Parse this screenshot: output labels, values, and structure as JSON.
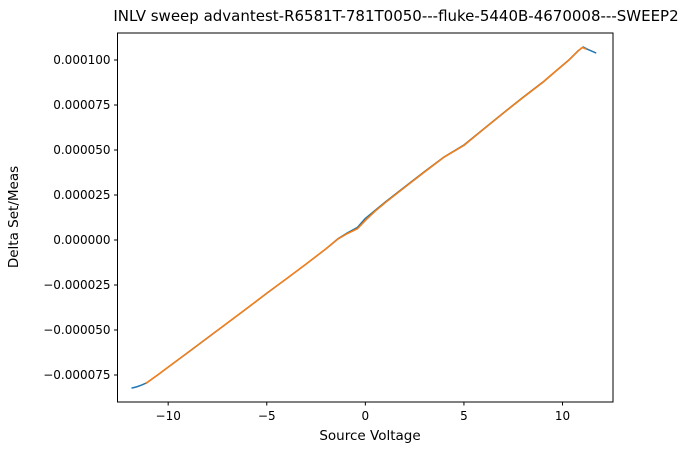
{
  "figure": {
    "background": "#ffffff",
    "text_color": "#000000",
    "spine_color": "#000000"
  },
  "chart_data": {
    "type": "line",
    "title": "INLV sweep advantest-R6581T-781T0050---fluke-5440B-4670008---SWEEP2",
    "xlabel": "Source Voltage",
    "ylabel": "Delta Set/Meas",
    "xlim": [
      -12.57,
      12.56
    ],
    "ylim": [
      -9e-05,
      0.000115
    ],
    "grid": false,
    "legend": null,
    "x_ticks": [
      {
        "value": -10,
        "label": "−10"
      },
      {
        "value": -5,
        "label": "−5"
      },
      {
        "value": 0,
        "label": "0"
      },
      {
        "value": 5,
        "label": "5"
      },
      {
        "value": 10,
        "label": "10"
      }
    ],
    "y_ticks": [
      {
        "value": 0.0001,
        "label": "0.000100"
      },
      {
        "value": 7.5e-05,
        "label": "0.000075"
      },
      {
        "value": 5e-05,
        "label": "0.000050"
      },
      {
        "value": 2.5e-05,
        "label": "0.000025"
      },
      {
        "value": 0.0,
        "label": "0.000000"
      },
      {
        "value": -2.5e-05,
        "label": "−0.000025"
      },
      {
        "value": -5e-05,
        "label": "−0.000050"
      },
      {
        "value": -7.5e-05,
        "label": "−0.000075"
      }
    ],
    "series": [
      {
        "name": "series-1-blue",
        "color": "#1f77b4",
        "points": [
          [
            -11.83,
            -8.22e-05
          ],
          [
            -11.6,
            -8.16e-05
          ],
          [
            -11.35,
            -8.06e-05
          ],
          [
            -11.1,
            -7.94e-05
          ],
          [
            -10.5,
            -7.47e-05
          ],
          [
            -10,
            -7.06e-05
          ],
          [
            -9,
            -6.25e-05
          ],
          [
            -8,
            -5.43e-05
          ],
          [
            -7,
            -4.61e-05
          ],
          [
            -6,
            -3.79e-05
          ],
          [
            -5,
            -2.96e-05
          ],
          [
            -4,
            -2.15e-05
          ],
          [
            -3,
            -1.33e-05
          ],
          [
            -2,
            -4.9e-06
          ],
          [
            -1.4,
            6e-07
          ],
          [
            -0.9,
            4e-06
          ],
          [
            -0.4,
            7e-06
          ],
          [
            0,
            1.2e-05
          ],
          [
            0.5,
            1.65e-05
          ],
          [
            1,
            2.1e-05
          ],
          [
            2,
            2.95e-05
          ],
          [
            3,
            3.8e-05
          ],
          [
            4,
            4.62e-05
          ],
          [
            5,
            5.28e-05
          ],
          [
            6,
            6.17e-05
          ],
          [
            7,
            7.06e-05
          ],
          [
            8,
            7.93e-05
          ],
          [
            9,
            8.77e-05
          ],
          [
            9.7,
            9.43e-05
          ],
          [
            10.3,
            9.98e-05
          ],
          [
            10.8,
            0.0001052
          ],
          [
            11.05,
            0.0001072
          ],
          [
            11.3,
            0.0001058
          ],
          [
            11.68,
            0.000104
          ]
        ]
      },
      {
        "name": "series-2-orange",
        "color": "#ff7f0e",
        "points": [
          [
            -11.1,
            -7.95e-05
          ],
          [
            -10.5,
            -7.48e-05
          ],
          [
            -10,
            -7.07e-05
          ],
          [
            -9,
            -6.26e-05
          ],
          [
            -8,
            -5.44e-05
          ],
          [
            -7,
            -4.62e-05
          ],
          [
            -6,
            -3.8e-05
          ],
          [
            -5,
            -2.97e-05
          ],
          [
            -4,
            -2.16e-05
          ],
          [
            -3,
            -1.34e-05
          ],
          [
            -2,
            -5e-06
          ],
          [
            -1.4,
            4e-07
          ],
          [
            -0.9,
            3.6e-06
          ],
          [
            -0.4,
            6.2e-06
          ],
          [
            0,
            1.08e-05
          ],
          [
            0.5,
            1.6e-05
          ],
          [
            1,
            2.06e-05
          ],
          [
            2,
            2.92e-05
          ],
          [
            3,
            3.77e-05
          ],
          [
            4,
            4.6e-05
          ],
          [
            5,
            5.25e-05
          ],
          [
            6,
            6.15e-05
          ],
          [
            7,
            7.04e-05
          ],
          [
            8,
            7.91e-05
          ],
          [
            9,
            8.75e-05
          ],
          [
            9.7,
            9.41e-05
          ],
          [
            10.3,
            9.96e-05
          ],
          [
            10.8,
            0.000105
          ],
          [
            11.0,
            0.000107
          ],
          [
            11.2,
            0.000106
          ]
        ]
      }
    ]
  }
}
